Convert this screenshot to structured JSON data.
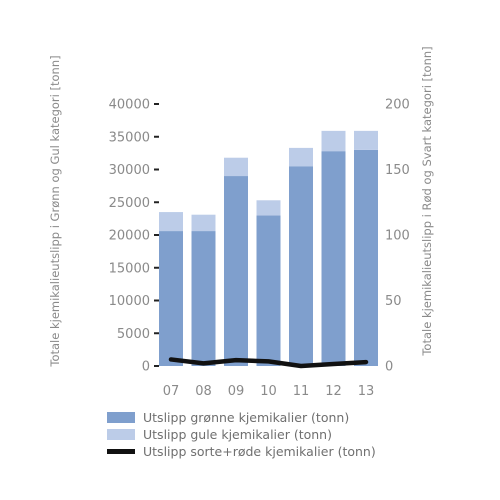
{
  "chart_data": {
    "type": "bar",
    "stacked": true,
    "categories": [
      "07",
      "08",
      "09",
      "10",
      "11",
      "12",
      "13"
    ],
    "series": [
      {
        "name": "Utslipp grønne kjemikalier (tonn)",
        "type": "bar",
        "axis": "left",
        "color": "#7f9fcd",
        "values": [
          20600,
          20600,
          29000,
          23000,
          30500,
          32800,
          33000
        ]
      },
      {
        "name": "Utslipp gule kjemikalier (tonn)",
        "type": "bar",
        "axis": "left",
        "color": "#bccce8",
        "values": [
          2900,
          2500,
          2800,
          2300,
          2800,
          3100,
          2900
        ]
      },
      {
        "name": "Utslipp sorte+røde kjemikalier (tonn)",
        "type": "line",
        "axis": "right",
        "color": "#111111",
        "values": [
          5,
          2,
          4.5,
          3.5,
          0,
          1.5,
          3
        ]
      }
    ],
    "left_axis": {
      "title": "Totale kjemikalieutslipp i Grønn og Gul kategori [tonn]",
      "range": [
        0,
        40000
      ],
      "ticks": [
        "0",
        "5000",
        "10000",
        "15000",
        "20000",
        "25000",
        "30000",
        "35000",
        "40000"
      ]
    },
    "right_axis": {
      "title": "Totale kjemikalieutslipp i Rød og Svart kategori [tonn]",
      "range": [
        0,
        200
      ],
      "ticks": [
        "0",
        "50",
        "100",
        "150",
        "200"
      ]
    },
    "grid": false,
    "legend_position": "bottom-left"
  }
}
